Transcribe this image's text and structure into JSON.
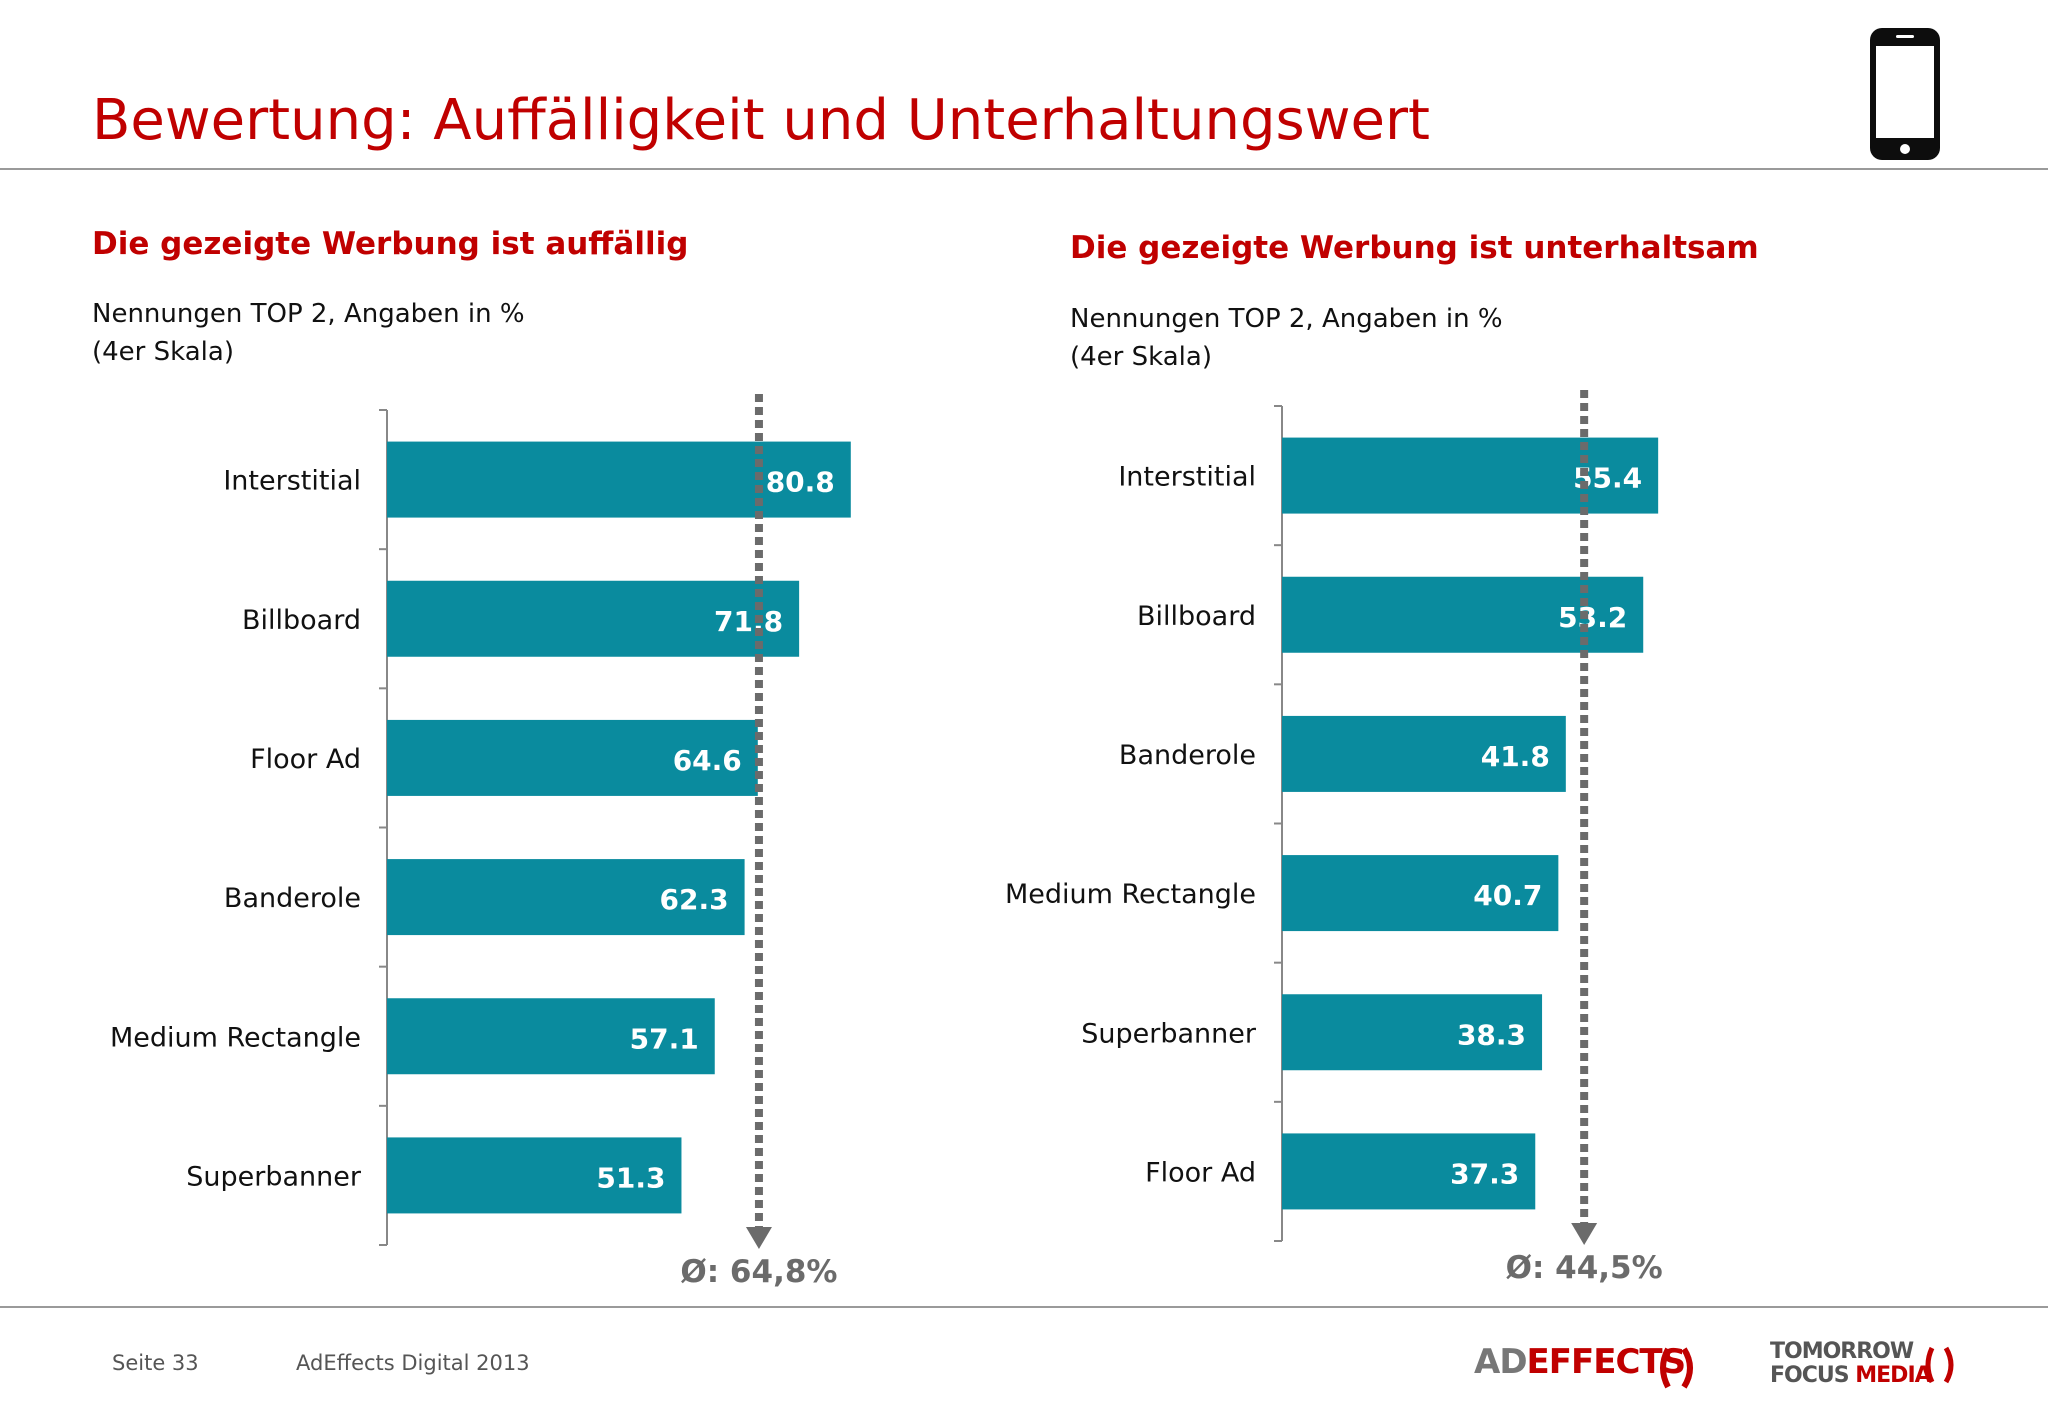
{
  "header": {
    "title": "Bewertung: Auffälligkeit und Unterhaltungswert"
  },
  "icons": [
    "smartphone-icon"
  ],
  "colors": {
    "title": "#c00000",
    "bar": "#0a8b9e",
    "average_line": "#6b6b6b"
  },
  "chart_data": [
    {
      "type": "bar",
      "orientation": "horizontal",
      "title": "Die gezeigte Werbung ist auffällig",
      "subtitle_lines": [
        "Nennungen TOP 2, Angaben in %",
        "(4er Skala)"
      ],
      "categories": [
        "Interstitial",
        "Billboard",
        "Floor Ad",
        "Banderole",
        "Medium Rectangle",
        "Superbanner"
      ],
      "values": [
        80.8,
        71.8,
        64.6,
        62.3,
        57.1,
        51.3
      ],
      "value_labels": [
        "80.8",
        "71.8",
        "64.6",
        "62.3",
        "57.1",
        "51.3"
      ],
      "average": {
        "value": 64.8,
        "label": "Ø: 64,8%"
      },
      "xlim": [
        0,
        100
      ],
      "grid": false,
      "legend": "none"
    },
    {
      "type": "bar",
      "orientation": "horizontal",
      "title": "Die gezeigte Werbung ist unterhaltsam",
      "subtitle_lines": [
        "Nennungen TOP 2, Angaben in %",
        "(4er Skala)"
      ],
      "categories": [
        "Interstitial",
        "Billboard",
        "Banderole",
        "Medium Rectangle",
        "Superbanner",
        "Floor Ad"
      ],
      "values": [
        55.4,
        53.2,
        41.8,
        40.7,
        38.3,
        37.3
      ],
      "value_labels": [
        "55.4",
        "53.2",
        "41.8",
        "40.7",
        "38.3",
        "37.3"
      ],
      "average": {
        "value": 44.5,
        "label": "Ø: 44,5%"
      },
      "xlim": [
        0,
        70
      ],
      "grid": false,
      "legend": "none"
    }
  ],
  "footer": {
    "page": "Seite 33",
    "source": "AdEffects Digital 2013",
    "logo_adeffects": {
      "part1": "AD",
      "part2": "EFFECTS"
    },
    "logo_tomorrow": {
      "line1": "TOMORROW",
      "line2a": "FOCUS",
      "line2b": "MEDIA"
    }
  }
}
